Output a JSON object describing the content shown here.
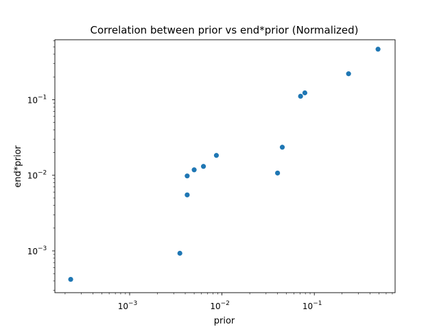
{
  "chart_data": {
    "type": "scatter",
    "title": "Correlation between prior vs end*prior (Normalized)",
    "xlabel": "prior",
    "ylabel": "end*prior",
    "xscale": "log",
    "yscale": "log",
    "xlim": [
      0.000155,
      0.75
    ],
    "ylim": [
      0.00028,
      0.62
    ],
    "grid": false,
    "marker_color": "#1f77b4",
    "x_ticks": [
      {
        "value": 0.001,
        "label": "10",
        "exp": "−3"
      },
      {
        "value": 0.01,
        "label": "10",
        "exp": "−2"
      },
      {
        "value": 0.1,
        "label": "10",
        "exp": "−1"
      }
    ],
    "y_ticks": [
      {
        "value": 0.001,
        "label": "10",
        "exp": "−3"
      },
      {
        "value": 0.01,
        "label": "10",
        "exp": "−2"
      },
      {
        "value": 0.1,
        "label": "10",
        "exp": "−1"
      }
    ],
    "points": [
      {
        "x": 0.00023,
        "y": 0.00042
      },
      {
        "x": 0.0035,
        "y": 0.00093
      },
      {
        "x": 0.0042,
        "y": 0.0055
      },
      {
        "x": 0.0042,
        "y": 0.0098
      },
      {
        "x": 0.005,
        "y": 0.0118
      },
      {
        "x": 0.0063,
        "y": 0.0131
      },
      {
        "x": 0.0087,
        "y": 0.0183
      },
      {
        "x": 0.04,
        "y": 0.0107
      },
      {
        "x": 0.045,
        "y": 0.0235
      },
      {
        "x": 0.071,
        "y": 0.111
      },
      {
        "x": 0.079,
        "y": 0.123
      },
      {
        "x": 0.235,
        "y": 0.22
      },
      {
        "x": 0.49,
        "y": 0.465
      }
    ]
  }
}
